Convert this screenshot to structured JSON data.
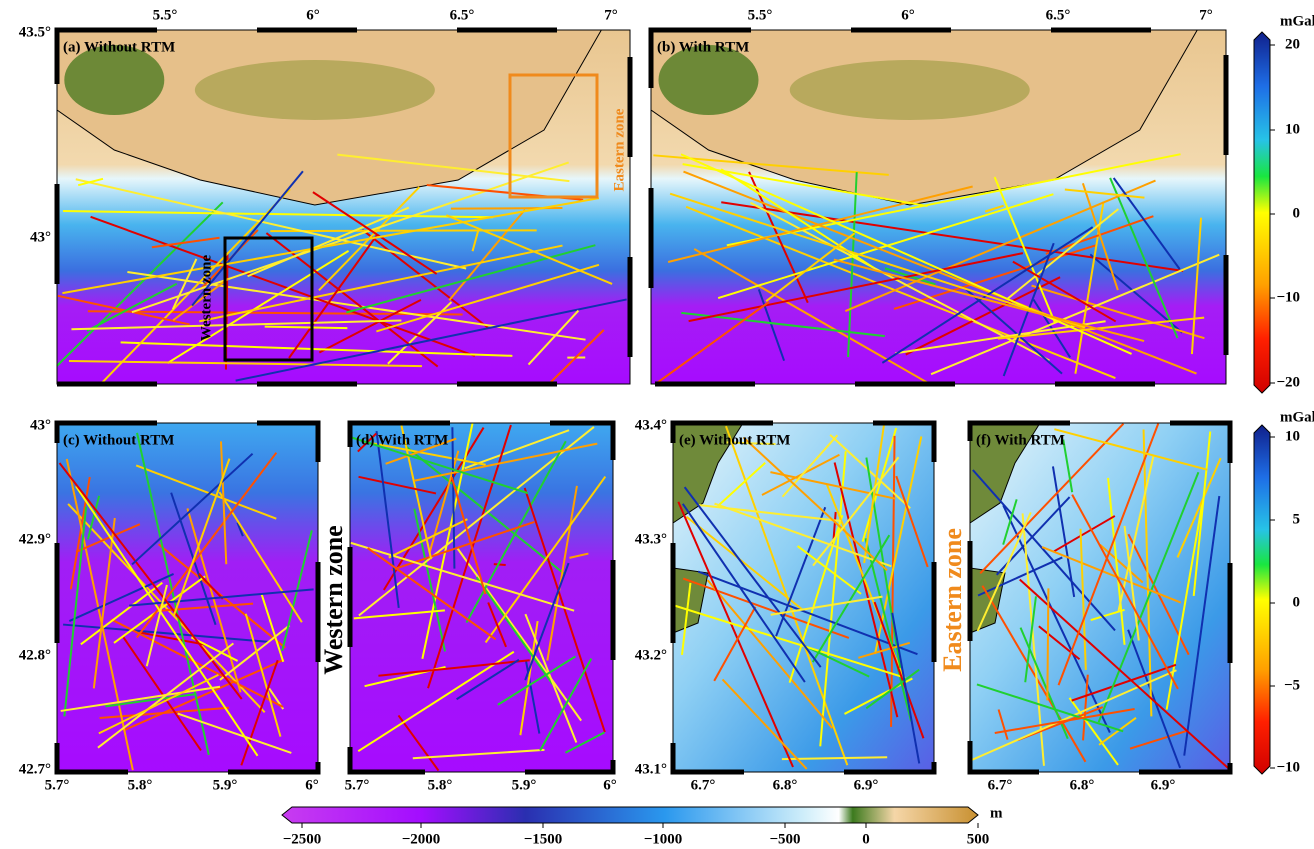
{
  "panels": [
    {
      "label": "(a) Without RTM",
      "xticks": [
        "5.5°",
        "6°",
        "6.5°",
        "7°"
      ],
      "yticks": [
        "43.5°",
        "43°"
      ]
    },
    {
      "label": "(b) With RTM",
      "xticks": [
        "5.5°",
        "6°",
        "6.5°",
        "7°"
      ],
      "yticks": []
    },
    {
      "label": "(c) Without RTM",
      "xticks": [
        "5.7°",
        "5.8°",
        "5.9°",
        "6°"
      ],
      "yticks": [
        "43°",
        "42.9°",
        "42.8°",
        "42.7°"
      ]
    },
    {
      "label": "(d) With RTM",
      "xticks": [
        "5.7°",
        "5.8°",
        "5.9°",
        "6°"
      ],
      "yticks": []
    },
    {
      "label": "(e) Without RTM",
      "xticks": [
        "6.7°",
        "6.8°",
        "6.9°"
      ],
      "yticks": [
        "43.4°",
        "43.3°",
        "43.2°",
        "43.1°"
      ]
    },
    {
      "label": "(f) With RTM",
      "xticks": [
        "6.7°",
        "6.8°",
        "6.9°"
      ],
      "yticks": []
    }
  ],
  "zones": {
    "western_small": "Western zone",
    "eastern_small": "Eastern zone",
    "western": "Western zone",
    "eastern": "Eastern zone"
  },
  "colorbars": [
    {
      "unit": "mGal",
      "ticks": [
        "20",
        "10",
        "0",
        "−10",
        "−20"
      ]
    },
    {
      "unit": "mGal",
      "ticks": [
        "10",
        "5",
        "0",
        "−5",
        "−10"
      ]
    },
    {
      "unit": "m",
      "ticks": [
        "−2500",
        "−2000",
        "−1500",
        "−1000",
        "−500",
        "0",
        "500"
      ]
    }
  ]
}
